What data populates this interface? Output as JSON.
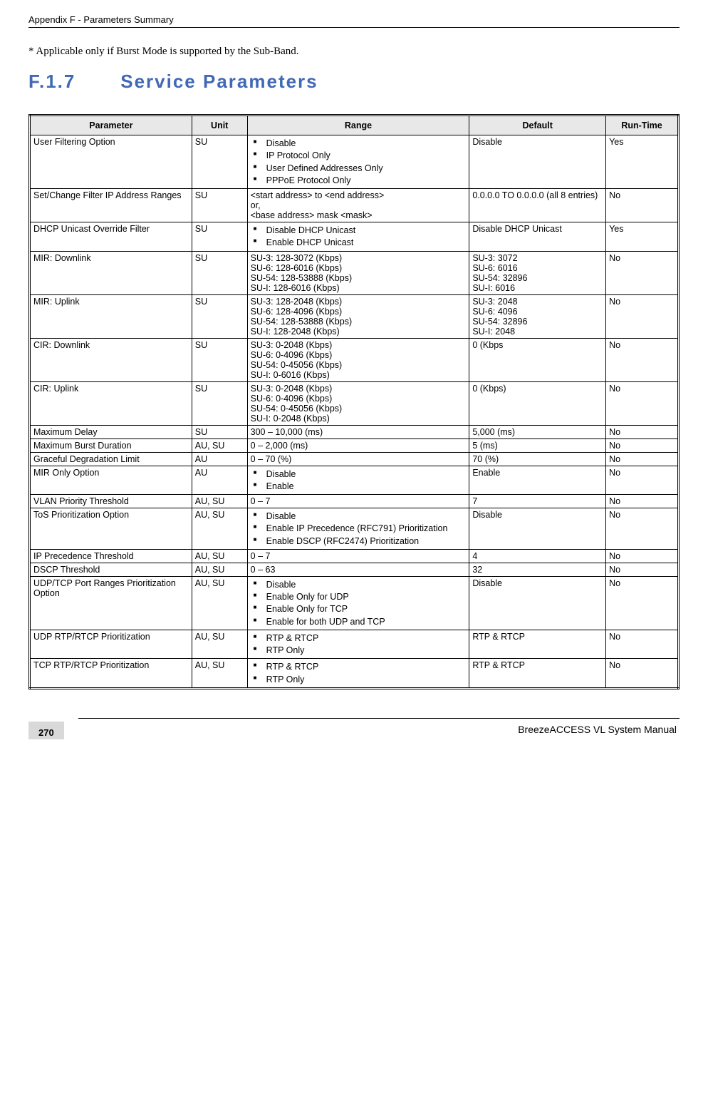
{
  "header": "Appendix F - Parameters Summary",
  "note": "* Applicable only if Burst Mode is supported by the Sub-Band.",
  "section": {
    "num": "F.1.7",
    "title": "Service Parameters"
  },
  "columns": [
    "Parameter",
    "Unit",
    "Range",
    "Default",
    "Run-Time"
  ],
  "rows": [
    {
      "param": "User Filtering Option",
      "unit": "SU",
      "range_list": [
        "Disable",
        "IP Protocol Only",
        "User Defined Addresses Only",
        "PPPoE Protocol Only"
      ],
      "def": "Disable",
      "rt": "Yes"
    },
    {
      "param": "Set/Change Filter IP Address Ranges",
      "unit": "SU",
      "range_text": "<start address> to <end address>\nor,\n<base address> mask <mask>",
      "def": "0.0.0.0 TO 0.0.0.0 (all 8 entries)",
      "rt": "No"
    },
    {
      "param": "DHCP Unicast Override Filter",
      "unit": "SU",
      "range_list": [
        "Disable DHCP Unicast",
        "Enable DHCP Unicast"
      ],
      "def": "Disable DHCP Unicast",
      "rt": "Yes"
    },
    {
      "param": "MIR: Downlink",
      "unit": "SU",
      "range_text": "SU-3: 128-3072 (Kbps)\nSU-6: 128-6016 (Kbps)\nSU-54: 128-53888 (Kbps)\nSU-I: 128-6016 (Kbps)",
      "def": "SU-3: 3072\nSU-6: 6016\nSU-54: 32896\nSU-I: 6016",
      "rt": "No"
    },
    {
      "param": "MIR: Uplink",
      "unit": "SU",
      "range_text": "SU-3: 128-2048 (Kbps)\nSU-6: 128-4096 (Kbps)\nSU-54: 128-53888 (Kbps)\nSU-I: 128-2048 (Kbps)",
      "def": "SU-3: 2048\nSU-6: 4096\nSU-54: 32896\nSU-I: 2048",
      "rt": "No"
    },
    {
      "param": "CIR: Downlink",
      "unit": "SU",
      "range_text": "SU-3: 0-2048 (Kbps)\nSU-6: 0-4096 (Kbps)\nSU-54: 0-45056 (Kbps)\nSU-I: 0-6016 (Kbps)",
      "def": "0 (Kbps",
      "rt": "No"
    },
    {
      "param": "CIR: Uplink",
      "unit": "SU",
      "range_text": "SU-3: 0-2048 (Kbps)\nSU-6: 0-4096 (Kbps)\nSU-54: 0-45056 (Kbps)\nSU-I: 0-2048 (Kbps)",
      "def": "0 (Kbps)",
      "rt": "No"
    },
    {
      "param": "Maximum Delay",
      "unit": "SU",
      "range_text": "300 – 10,000 (ms)",
      "def": "5,000 (ms)",
      "rt": "No"
    },
    {
      "param": "Maximum Burst Duration",
      "unit": "AU, SU",
      "range_text": "0 – 2,000 (ms)",
      "def": "5 (ms)",
      "rt": "No"
    },
    {
      "param": "Graceful Degradation Limit",
      "unit": "AU",
      "range_text": "0 – 70 (%)",
      "def": "70 (%)",
      "rt": "No"
    },
    {
      "param": "MIR Only Option",
      "unit": "AU",
      "range_list": [
        "Disable",
        "Enable"
      ],
      "def": "Enable",
      "rt": "No"
    },
    {
      "param": "VLAN Priority Threshold",
      "unit": "AU, SU",
      "range_text": "0 – 7",
      "def": "7",
      "rt": "No"
    },
    {
      "param": "ToS Prioritization Option",
      "unit": "AU, SU",
      "range_list": [
        "Disable",
        "Enable IP Precedence (RFC791) Prioritization",
        "Enable DSCP (RFC2474) Prioritization"
      ],
      "def": "Disable",
      "rt": "No"
    },
    {
      "param": "IP Precedence Threshold",
      "unit": "AU, SU",
      "range_text": "0 – 7",
      "def": "4",
      "rt": "No"
    },
    {
      "param": "DSCP Threshold",
      "unit": "AU, SU",
      "range_text": "0 – 63",
      "def": "32",
      "rt": "No"
    },
    {
      "param": "UDP/TCP Port Ranges Prioritization Option",
      "unit": "AU, SU",
      "range_list": [
        "Disable",
        "Enable Only for UDP",
        "Enable Only for TCP",
        "Enable for both UDP and TCP"
      ],
      "def": "Disable",
      "rt": "No"
    },
    {
      "param": "UDP RTP/RTCP Prioritization",
      "unit": "AU, SU",
      "range_list": [
        "RTP & RTCP",
        "RTP Only"
      ],
      "def": "RTP & RTCP",
      "rt": "No"
    },
    {
      "param": "TCP RTP/RTCP Prioritization",
      "unit": "AU, SU",
      "range_list": [
        "RTP & RTCP",
        "RTP Only"
      ],
      "def": "RTP & RTCP",
      "rt": "No"
    }
  ],
  "footer": {
    "page": "270",
    "manual": "BreezeACCESS VL System Manual"
  }
}
